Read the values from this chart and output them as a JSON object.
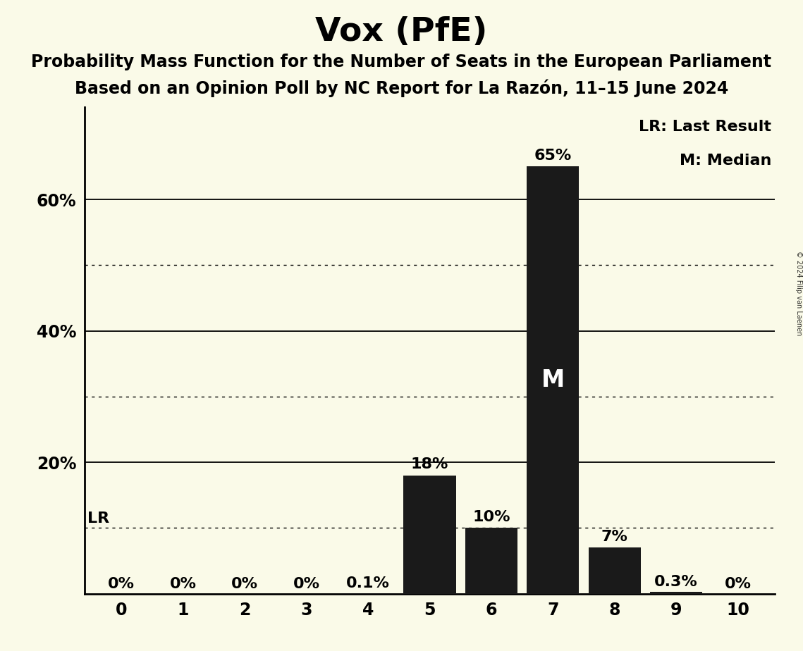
{
  "title": "Vox (PfE)",
  "subtitle1": "Probability Mass Function for the Number of Seats in the European Parliament",
  "subtitle2": "Based on an Opinion Poll by NC Report for La Razón, 11–15 June 2024",
  "copyright": "© 2024 Filip van Laenen",
  "categories": [
    0,
    1,
    2,
    3,
    4,
    5,
    6,
    7,
    8,
    9,
    10
  ],
  "values": [
    0.0,
    0.0,
    0.0,
    0.0,
    0.001,
    0.18,
    0.1,
    0.65,
    0.07,
    0.003,
    0.0
  ],
  "labels": [
    "0%",
    "0%",
    "0%",
    "0%",
    "0.1%",
    "18%",
    "10%",
    "65%",
    "7%",
    "0.3%",
    "0%"
  ],
  "bar_color": "#1a1a1a",
  "background_color": "#fafae8",
  "median_seat": 7,
  "lr_value": 0.1,
  "lr_label": "LR",
  "median_label": "M",
  "yticks": [
    0.2,
    0.4,
    0.6
  ],
  "ytick_labels": [
    "20%",
    "40%",
    "60%"
  ],
  "dotted_lines": [
    0.1,
    0.3,
    0.5
  ],
  "ylim": [
    0,
    0.74
  ],
  "legend_lr": "LR: Last Result",
  "legend_m": "M: Median",
  "title_fontsize": 34,
  "subtitle_fontsize": 17,
  "label_fontsize": 16,
  "tick_fontsize": 17,
  "legend_fontsize": 16,
  "median_fontsize": 24
}
